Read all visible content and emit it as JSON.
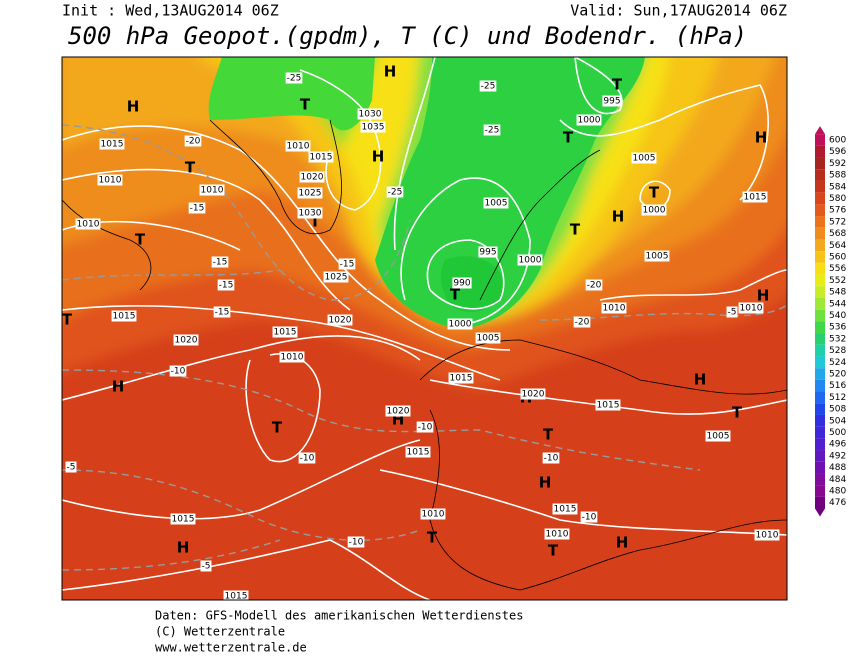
{
  "header": {
    "init": "Init : Wed,13AUG2014 06Z",
    "valid": "Valid: Sun,17AUG2014 06Z",
    "title": "500 hPa Geopot.(gpdm), T (C) und Bodendr. (hPa)"
  },
  "colorbar": {
    "levels": [
      600,
      596,
      592,
      588,
      584,
      580,
      576,
      572,
      568,
      564,
      560,
      556,
      552,
      548,
      544,
      540,
      536,
      532,
      528,
      524,
      520,
      516,
      512,
      508,
      504,
      500,
      496,
      492,
      488,
      484,
      480,
      476
    ]
  },
  "map": {
    "pressure_centers": [
      "H",
      "T",
      "T",
      "T",
      "H",
      "T",
      "H",
      "H",
      "T",
      "H",
      "T",
      "H",
      "T",
      "T",
      "T",
      "H",
      "T",
      "H",
      "H",
      "H",
      "T",
      "T",
      "H",
      "T",
      "T",
      "H",
      "T",
      "H"
    ],
    "isobar_labels": [
      "1015",
      "1010",
      "1010",
      "1010",
      "1015",
      "1020",
      "1015",
      "1010",
      "1020",
      "1025",
      "1030",
      "1025",
      "1020",
      "1015",
      "1010",
      "1030",
      "1035",
      "1005",
      "995",
      "990",
      "1000",
      "1005",
      "1000",
      "1000",
      "995",
      "1005",
      "1000",
      "1005",
      "1010",
      "1015",
      "1020",
      "1020",
      "1015",
      "1010",
      "1015",
      "1010",
      "1015",
      "1005",
      "1015",
      "1010",
      "1015",
      "1010",
      "1015"
    ],
    "temperature_labels": [
      "-20",
      "-15",
      "-15",
      "-15",
      "-15",
      "-15",
      "-25",
      "-25",
      "-25",
      "-25",
      "-20",
      "-10",
      "-10",
      "-10",
      "-10",
      "-10",
      "-10",
      "-5",
      "-5",
      "-5",
      "-20"
    ]
  },
  "footer": {
    "line1": "Daten: GFS-Modell des amerikanischen Wetterdienstes",
    "line2": "(C) Wetterzentrale",
    "line3": "www.wetterzentrale.de"
  }
}
